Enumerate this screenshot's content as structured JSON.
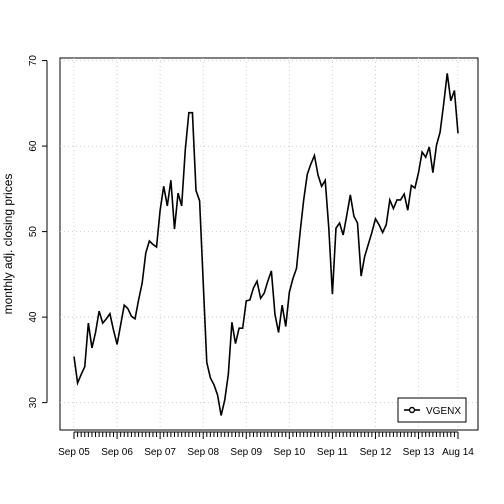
{
  "chart_data": {
    "type": "line",
    "categories": [
      "Sep 05",
      null,
      null,
      null,
      null,
      null,
      null,
      null,
      null,
      null,
      null,
      null,
      "Sep 06",
      null,
      null,
      null,
      null,
      null,
      null,
      null,
      null,
      null,
      null,
      null,
      "Sep 07",
      null,
      null,
      null,
      null,
      null,
      null,
      null,
      null,
      null,
      null,
      null,
      "Sep 08",
      null,
      null,
      null,
      null,
      null,
      null,
      null,
      null,
      null,
      null,
      null,
      "Sep 09",
      null,
      null,
      null,
      null,
      null,
      null,
      null,
      null,
      null,
      null,
      null,
      "Sep 10",
      null,
      null,
      null,
      null,
      null,
      null,
      null,
      null,
      null,
      null,
      null,
      "Sep 11",
      null,
      null,
      null,
      null,
      null,
      null,
      null,
      null,
      null,
      null,
      null,
      "Sep 12",
      null,
      null,
      null,
      null,
      null,
      null,
      null,
      null,
      null,
      null,
      null,
      "Sep 13",
      null,
      null,
      null,
      null,
      null,
      null,
      null,
      null,
      null,
      null,
      "Aug 14"
    ],
    "series": [
      {
        "name": "VGENX",
        "color": "#000000",
        "values": [
          35.4,
          32.3,
          33.3,
          34.2,
          39.3,
          36.4,
          38.2,
          40.7,
          39.3,
          39.8,
          40.4,
          38.5,
          36.8,
          39.1,
          41.4,
          41.0,
          40.1,
          39.8,
          42.0,
          44.0,
          47.5,
          48.9,
          48.5,
          48.2,
          52.5,
          55.3,
          53.0,
          56.0,
          50.3,
          54.5,
          53.0,
          59.5,
          63.9,
          63.9,
          54.8,
          53.6,
          44.1,
          34.7,
          32.9,
          32.1,
          30.9,
          28.5,
          30.3,
          33.3,
          39.4,
          36.9,
          38.7,
          38.7,
          41.9,
          42.0,
          43.4,
          44.2,
          42.2,
          42.8,
          44.2,
          45.4,
          40.3,
          38.2,
          41.4,
          38.9,
          42.9,
          44.5,
          45.7,
          49.9,
          53.7,
          56.7,
          57.9,
          58.9,
          56.6,
          55.3,
          56.0,
          50.4,
          42.7,
          50.4,
          51.0,
          49.6,
          51.9,
          54.3,
          51.8,
          51.0,
          44.8,
          47.1,
          48.5,
          49.9,
          51.5,
          50.8,
          49.9,
          50.8,
          53.7,
          52.7,
          53.7,
          53.7,
          54.4,
          52.5,
          55.4,
          55.1,
          56.9,
          59.3,
          58.7,
          59.9,
          56.9,
          60.1,
          61.6,
          64.9,
          68.5,
          65.3,
          66.5,
          61.5
        ]
      }
    ],
    "y_label": "monthly adj. closing prices",
    "ylim": [
      26.8,
      70.3
    ],
    "yticks": [
      30,
      40,
      50,
      60,
      70
    ],
    "grid": true,
    "legend": "bottom-right"
  }
}
